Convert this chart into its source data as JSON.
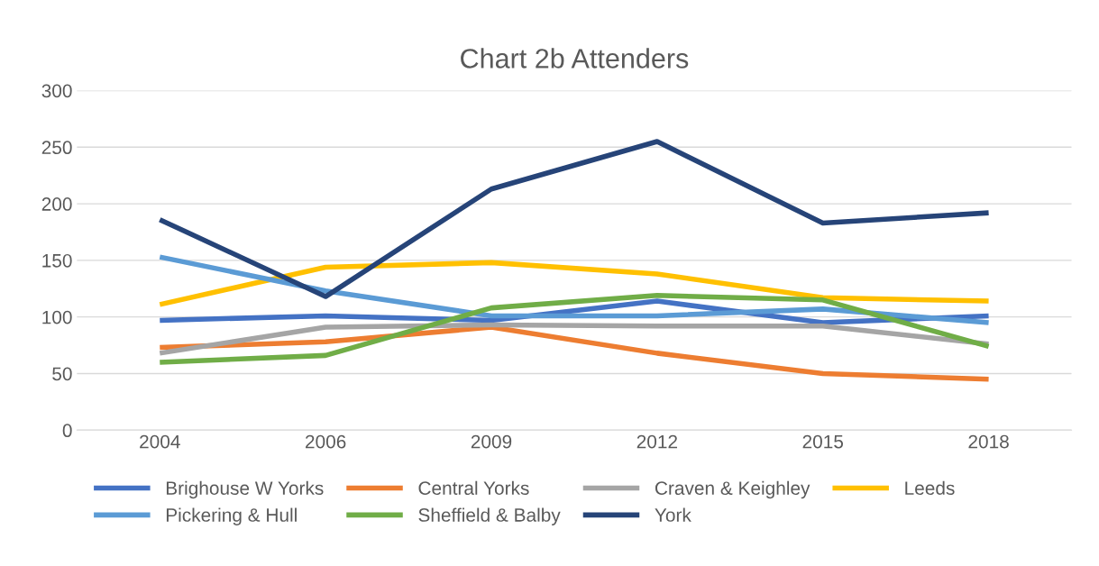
{
  "chart_data": {
    "type": "line",
    "title": "Chart 2b Attenders",
    "categories": [
      "2004",
      "2006",
      "2009",
      "2012",
      "2015",
      "2018"
    ],
    "series": [
      {
        "name": "Brighouse W Yorks",
        "color": "#4472c4",
        "values": [
          97,
          101,
          97,
          114,
          95,
          101
        ]
      },
      {
        "name": "Central Yorks",
        "color": "#ed7d31",
        "values": [
          73,
          78,
          91,
          68,
          50,
          45
        ]
      },
      {
        "name": "Craven & Keighley",
        "color": "#a5a5a5",
        "values": [
          68,
          91,
          93,
          92,
          92,
          76
        ]
      },
      {
        "name": "Leeds",
        "color": "#ffc000",
        "values": [
          111,
          144,
          148,
          138,
          117,
          114
        ]
      },
      {
        "name": "Pickering & Hull",
        "color": "#5b9bd5",
        "values": [
          153,
          123,
          101,
          101,
          107,
          95
        ]
      },
      {
        "name": "Sheffield & Balby",
        "color": "#70ad47",
        "values": [
          60,
          66,
          108,
          119,
          115,
          74
        ]
      },
      {
        "name": "York",
        "color": "#264478",
        "values": [
          186,
          118,
          213,
          255,
          183,
          192
        ]
      }
    ],
    "ylim": [
      0,
      300
    ],
    "yticks": [
      0,
      50,
      100,
      150,
      200,
      250,
      300
    ],
    "grid": "y",
    "legend": "bottom",
    "marker": "none",
    "line_style": "solid"
  }
}
